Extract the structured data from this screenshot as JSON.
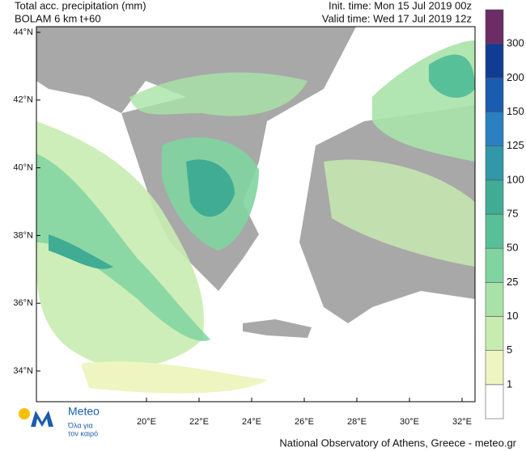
{
  "header": {
    "title": "Total acc. precipitation (mm)",
    "model": "BOLAM 6 km t+60",
    "init_time": "Init. time: Mon 15 Jul 2019 00z",
    "valid_time": "Valid time: Wed 17 Jul 2019 12z"
  },
  "map": {
    "lat_labels": [
      "44°N",
      "42°N",
      "40°N",
      "38°N",
      "36°N",
      "34°N"
    ],
    "lon_labels": [
      "20°E",
      "22°E",
      "24°E",
      "26°E",
      "28°E",
      "30°E",
      "32°E"
    ]
  },
  "colorbar": {
    "levels": [
      1,
      5,
      10,
      25,
      50,
      75,
      100,
      125,
      150,
      200,
      300
    ],
    "colors": [
      "#ffffff",
      "#eef5c0",
      "#c8ecb0",
      "#a8e2a8",
      "#80d4a0",
      "#58c098",
      "#40ac94",
      "#3098a8",
      "#2a80c0",
      "#1a5cb0",
      "#103c94",
      "#6c2c66"
    ]
  },
  "logo": {
    "name": "Meteo",
    "tagline_1": "Όλα για",
    "tagline_2": "τον καιρό"
  },
  "footer": "National Observatory of Athens, Greece - meteo.gr"
}
